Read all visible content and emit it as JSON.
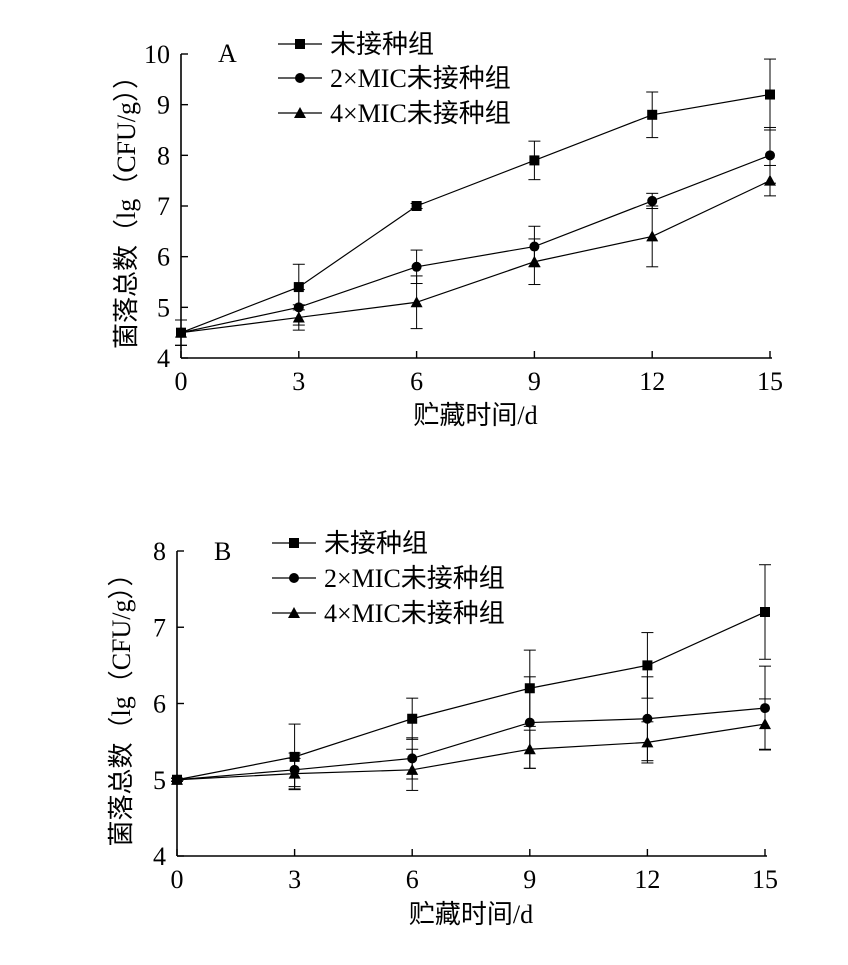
{
  "chart_data": [
    {
      "type": "line",
      "panel_label": "A",
      "xlabel": "贮藏时间/d",
      "ylabel": "菌落总数（lg（CFU/g））",
      "x": [
        0,
        3,
        6,
        9,
        12,
        15
      ],
      "xticks": [
        "0",
        "3",
        "6",
        "9",
        "12",
        "15"
      ],
      "ylim": [
        4,
        10
      ],
      "yticks": [
        "4",
        "5",
        "6",
        "7",
        "8",
        "9",
        "10"
      ],
      "legend_position": "top-center",
      "grid": false,
      "series": [
        {
          "name": "未接种组",
          "marker": "square",
          "values": [
            4.5,
            5.4,
            7.0,
            7.9,
            8.8,
            9.2
          ],
          "errors": [
            0.25,
            0.45,
            0.05,
            0.38,
            0.45,
            0.7
          ]
        },
        {
          "name": "2×MIC未接种组",
          "marker": "circle",
          "values": [
            4.5,
            5.0,
            5.8,
            6.2,
            7.1,
            8.0
          ],
          "errors": [
            0.25,
            0.35,
            0.33,
            0.4,
            0.15,
            0.55
          ]
        },
        {
          "name": "4×MIC未接种组",
          "marker": "triangle",
          "values": [
            4.5,
            4.8,
            5.1,
            5.9,
            6.4,
            7.5
          ],
          "errors": [
            0.25,
            0.25,
            0.52,
            0.45,
            0.6,
            0.3
          ]
        }
      ]
    },
    {
      "type": "line",
      "panel_label": "B",
      "xlabel": "贮藏时间/d",
      "ylabel": "菌落总数（lg（CFU/g））",
      "x": [
        0,
        3,
        6,
        9,
        12,
        15
      ],
      "xticks": [
        "0",
        "3",
        "6",
        "9",
        "12",
        "15"
      ],
      "ylim": [
        4,
        8
      ],
      "yticks": [
        "4",
        "5",
        "6",
        "7",
        "8"
      ],
      "legend_position": "top-center",
      "grid": false,
      "series": [
        {
          "name": "未接种组",
          "marker": "square",
          "values": [
            5.0,
            5.3,
            5.8,
            6.2,
            6.5,
            7.2
          ],
          "errors": [
            0.02,
            0.43,
            0.27,
            0.5,
            0.43,
            0.62
          ]
        },
        {
          "name": "2×MIC未接种组",
          "marker": "circle",
          "values": [
            5.0,
            5.13,
            5.28,
            5.75,
            5.8,
            5.94
          ],
          "errors": [
            0.02,
            0.22,
            0.27,
            0.6,
            0.55,
            0.55
          ]
        },
        {
          "name": "4×MIC未接种组",
          "marker": "triangle",
          "values": [
            5.0,
            5.08,
            5.13,
            5.4,
            5.49,
            5.73
          ],
          "errors": [
            0.02,
            0.2,
            0.27,
            0.25,
            0.27,
            0.33
          ]
        }
      ]
    }
  ]
}
